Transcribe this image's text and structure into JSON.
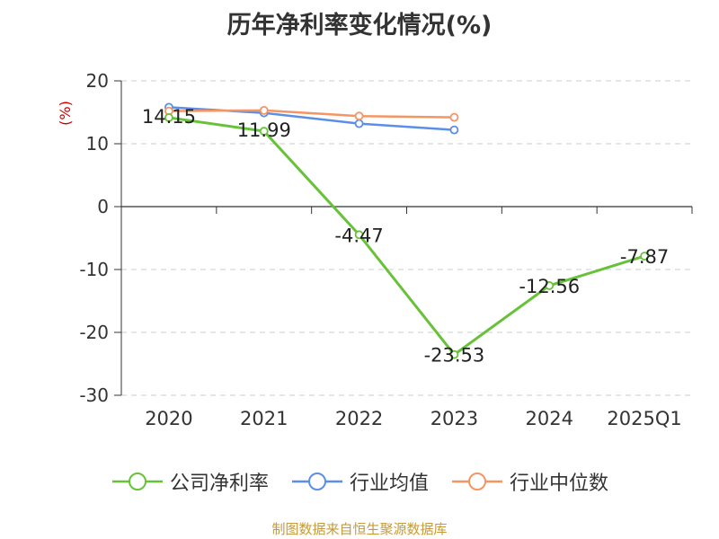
{
  "title": "历年净利率变化情况(%)",
  "source_note": "制图数据来自恒生聚源数据库",
  "chart_data": {
    "type": "line",
    "title": "历年净利率变化情况(%)",
    "ylabel": "(%)",
    "xlabel": "",
    "categories": [
      "2020",
      "2021",
      "2022",
      "2023",
      "2024",
      "2025Q1"
    ],
    "ylim": [
      -30,
      20
    ],
    "yticks": [
      20,
      10,
      0,
      -10,
      -20,
      -30
    ],
    "grid": true,
    "legend_position": "bottom",
    "series": [
      {
        "name": "公司净利率",
        "color": "#67c23a",
        "values": [
          14.15,
          11.99,
          -4.47,
          -23.53,
          -12.56,
          -7.87
        ],
        "labels": true
      },
      {
        "name": "行业均值",
        "color": "#5b8ee6",
        "values": [
          15.8,
          14.9,
          13.2,
          12.2,
          null,
          null
        ],
        "labels": false
      },
      {
        "name": "行业中位数",
        "color": "#f59562",
        "values": [
          15.2,
          15.3,
          14.4,
          14.2,
          null,
          null
        ],
        "labels": false
      }
    ]
  }
}
